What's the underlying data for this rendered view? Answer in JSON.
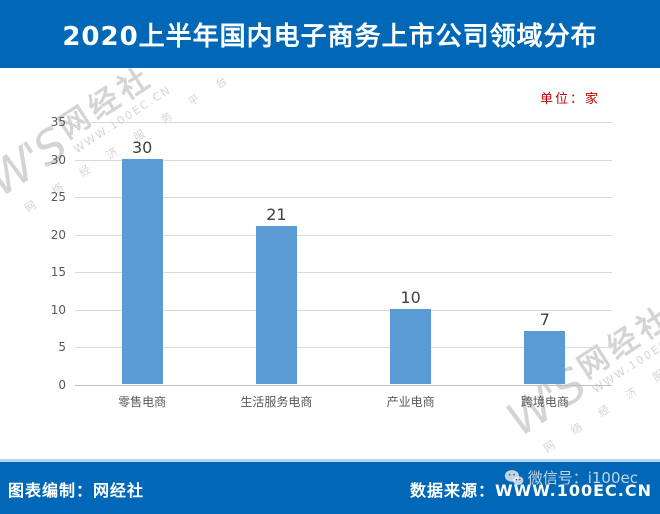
{
  "header": {
    "title": "2020上半年国内电子商务上市公司领域分布"
  },
  "chart_data": {
    "type": "bar",
    "title": "2020上半年国内电子商务上市公司领域分布",
    "unit_label": "单位：家",
    "categories": [
      "零售电商",
      "生活服务电商",
      "产业电商",
      "跨境电商"
    ],
    "values": [
      30,
      21,
      10,
      7
    ],
    "xlabel": "",
    "ylabel": "",
    "ylim": [
      0,
      35
    ],
    "yticks": [
      0,
      5,
      10,
      15,
      20,
      25,
      30,
      35
    ],
    "grid": true,
    "legend": "none",
    "bar_color": "#5b9bd5"
  },
  "watermark": {
    "logo": "W'S",
    "brand": "网经社",
    "site": "WWW.100EC.CN",
    "slogan": "网 络 经 济 服 务 平 台"
  },
  "footer": {
    "left": "图表编制：网经社",
    "right": "数据来源：WWW.100EC.CN",
    "wechat": "微信号：i100ec"
  },
  "colors": {
    "banner_blue": "#0068b7",
    "bar_blue": "#5b9bd5",
    "unit_label_red": "#c00000",
    "gridline_gray": "#d9d9d9",
    "axis_text_gray": "#595959"
  }
}
